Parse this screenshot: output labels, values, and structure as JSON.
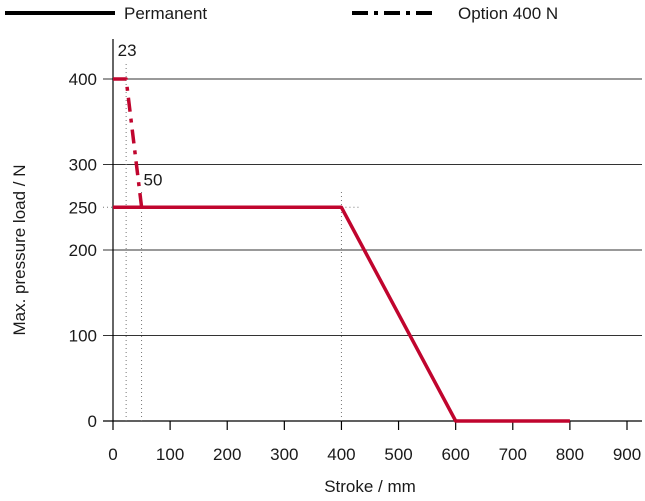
{
  "chart_data": {
    "type": "line",
    "xlabel": "Stroke / mm",
    "ylabel": "Max. pressure load / N",
    "xlim": [
      0,
      900
    ],
    "ylim": [
      0,
      400
    ],
    "x_ticks": [
      0,
      100,
      200,
      300,
      400,
      500,
      600,
      700,
      800,
      900
    ],
    "y_ticks": [
      0,
      100,
      200,
      250,
      300,
      400
    ],
    "grid": "horizontal",
    "legend_position": "top",
    "series": [
      {
        "name": "Permanent",
        "style": "solid",
        "color": "#c0052e",
        "x": [
          0,
          400,
          600,
          800
        ],
        "y": [
          250,
          250,
          0,
          0
        ]
      },
      {
        "name": "Option 400 N",
        "style": "dash-dot",
        "color": "#c0052e",
        "x": [
          0,
          23,
          50
        ],
        "y": [
          400,
          400,
          250
        ]
      }
    ],
    "annotations": [
      {
        "text": "23",
        "x": 23,
        "y": 400
      },
      {
        "text": "50",
        "x": 50,
        "y": 250
      }
    ],
    "guides": [
      {
        "x": 23,
        "from_y": 0,
        "to_y": 400
      },
      {
        "x": 50,
        "from_y": 0,
        "to_y": 250
      },
      {
        "x": 400,
        "from_y": 0,
        "to_y": 250
      }
    ]
  }
}
